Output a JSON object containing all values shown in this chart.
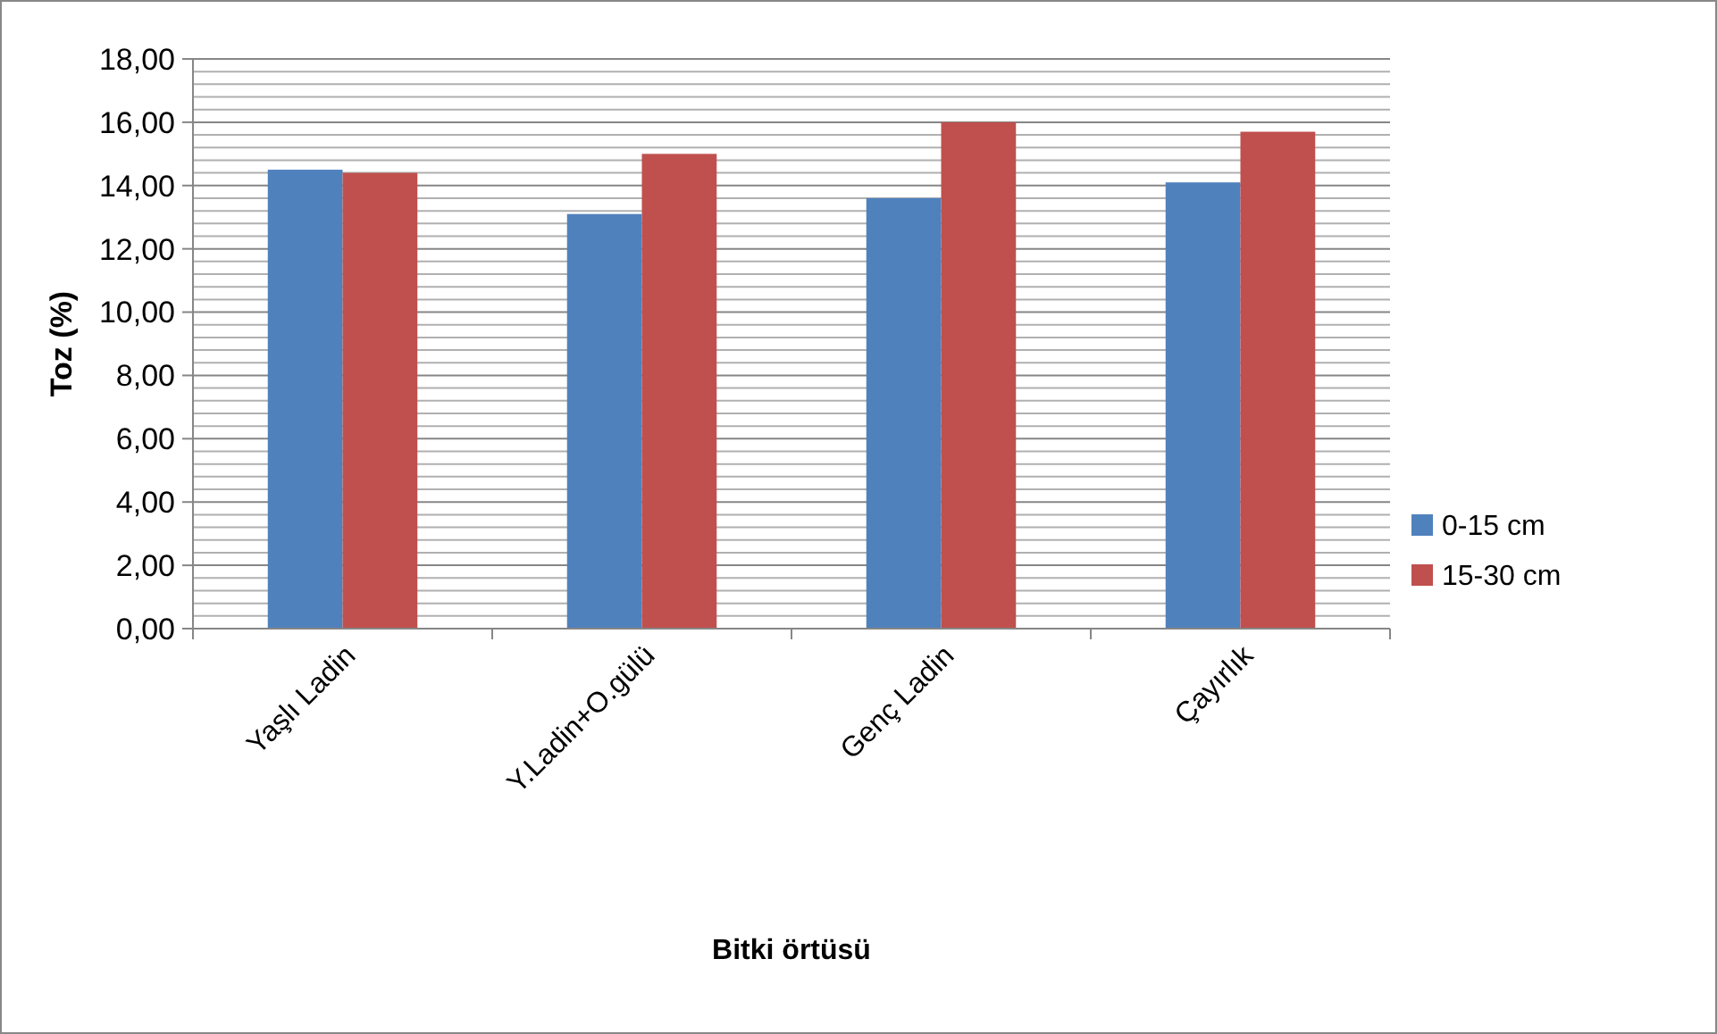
{
  "chart_data": {
    "type": "bar",
    "xlabel": "Bitki örtüsü",
    "ylabel": "Toz (%)",
    "categories": [
      "Yaşlı Ladin",
      "Y.Ladin+O.gülü",
      "Genç Ladin",
      "Çayırlık"
    ],
    "series": [
      {
        "name": "0-15 cm",
        "color": "#4f81bd",
        "values": [
          14.5,
          13.1,
          13.6,
          14.1
        ]
      },
      {
        "name": "15-30 cm",
        "color": "#c0504d",
        "values": [
          14.4,
          15.0,
          16.0,
          15.7
        ]
      }
    ],
    "ylim": [
      0,
      18
    ],
    "yticks": [
      {
        "value": 0,
        "label": "0,00"
      },
      {
        "value": 0.4,
        "label": null
      },
      {
        "value": 0.8,
        "label": null
      },
      {
        "value": 1.2,
        "label": null
      },
      {
        "value": 1.6,
        "label": null
      },
      {
        "value": 2,
        "label": "2,00"
      },
      {
        "value": 2.4,
        "label": null
      },
      {
        "value": 2.8,
        "label": null
      },
      {
        "value": 3.2,
        "label": null
      },
      {
        "value": 3.6,
        "label": null
      },
      {
        "value": 4,
        "label": "4,00"
      },
      {
        "value": 4.4,
        "label": null
      },
      {
        "value": 4.8,
        "label": null
      },
      {
        "value": 5.2,
        "label": null
      },
      {
        "value": 5.6,
        "label": null
      },
      {
        "value": 6,
        "label": "6,00"
      },
      {
        "value": 6.4,
        "label": null
      },
      {
        "value": 6.8,
        "label": null
      },
      {
        "value": 7.2,
        "label": null
      },
      {
        "value": 7.6,
        "label": null
      },
      {
        "value": 8,
        "label": "8,00"
      },
      {
        "value": 8.4,
        "label": null
      },
      {
        "value": 8.8,
        "label": null
      },
      {
        "value": 9.2,
        "label": null
      },
      {
        "value": 9.6,
        "label": null
      },
      {
        "value": 10,
        "label": "10,00"
      },
      {
        "value": 10.4,
        "label": null
      },
      {
        "value": 10.8,
        "label": null
      },
      {
        "value": 11.2,
        "label": null
      },
      {
        "value": 11.6,
        "label": null
      },
      {
        "value": 12,
        "label": "12,00"
      },
      {
        "value": 12.4,
        "label": null
      },
      {
        "value": 12.8,
        "label": null
      },
      {
        "value": 13.2,
        "label": null
      },
      {
        "value": 13.6,
        "label": null
      },
      {
        "value": 14,
        "label": "14,00"
      },
      {
        "value": 14.4,
        "label": null
      },
      {
        "value": 14.8,
        "label": null
      },
      {
        "value": 15.2,
        "label": null
      },
      {
        "value": 15.6,
        "label": null
      },
      {
        "value": 16,
        "label": "16,00"
      },
      {
        "value": 16.4,
        "label": null
      },
      {
        "value": 16.8,
        "label": null
      },
      {
        "value": 17.2,
        "label": null
      },
      {
        "value": 17.6,
        "label": null
      },
      {
        "value": 18,
        "label": "18,00"
      }
    ],
    "grid": true,
    "legend": "right"
  }
}
